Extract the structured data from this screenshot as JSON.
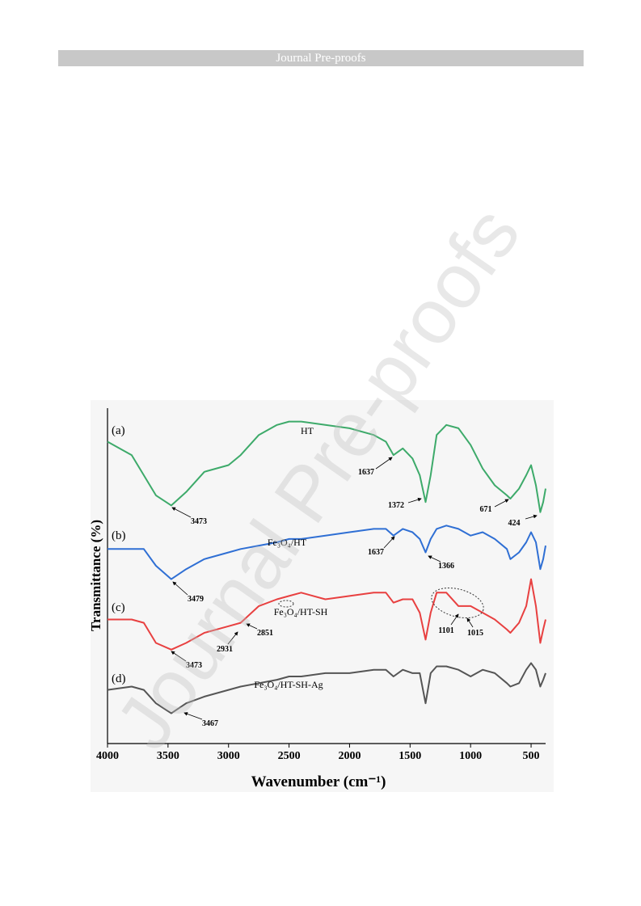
{
  "header": {
    "title": "Journal Pre-proofs"
  },
  "watermark": "Journal Pre-proofs",
  "chart_data": {
    "type": "line",
    "xlabel": "Wavenumber (cm⁻¹)",
    "ylabel": "Transmittance (%)",
    "xlim": [
      4000,
      380
    ],
    "xticks": [
      4000,
      3500,
      3000,
      2500,
      2000,
      1500,
      1000,
      500
    ],
    "ylim": [
      0,
      100
    ],
    "x": [
      4000,
      3800,
      3700,
      3600,
      3473,
      3350,
      3200,
      3000,
      2900,
      2750,
      2600,
      2500,
      2400,
      2200,
      2000,
      1800,
      1700,
      1637,
      1560,
      1480,
      1420,
      1372,
      1330,
      1280,
      1200,
      1100,
      1000,
      900,
      800,
      700,
      671,
      600,
      540,
      500,
      460,
      424,
      400,
      380
    ],
    "series": [
      {
        "name": "HT",
        "label": "(a)",
        "color": "#3daa6a",
        "values": [
          90,
          86,
          80,
          74,
          71,
          75,
          81,
          83,
          86,
          92,
          95,
          96,
          96,
          95,
          94,
          92,
          90,
          86,
          88,
          85,
          80,
          72,
          80,
          92,
          95,
          94,
          89,
          82,
          77,
          74,
          73,
          76,
          80,
          83,
          77,
          69,
          72,
          76
        ]
      },
      {
        "name": "Fe₃O₄/HT",
        "label": "(b)",
        "color": "#2f6fd4",
        "values": [
          58,
          58,
          58,
          53,
          49,
          52,
          55,
          57,
          58,
          59,
          60,
          61,
          61,
          62,
          63,
          64,
          64,
          62,
          64,
          63,
          61,
          57,
          61,
          64,
          65,
          64,
          62,
          63,
          61,
          58,
          55,
          57,
          60,
          63,
          60,
          52,
          55,
          59
        ]
      },
      {
        "name": "Fe₃O₄/HT-SH",
        "label": "(c)",
        "color": "#e84040",
        "values": [
          37,
          37,
          36,
          30,
          28,
          30,
          33,
          35,
          36,
          41,
          43,
          44,
          45,
          43,
          44,
          45,
          45,
          42,
          43,
          43,
          39,
          31,
          39,
          45,
          45,
          41,
          41,
          39,
          37,
          34,
          33,
          36,
          41,
          49,
          41,
          30,
          34,
          37
        ]
      },
      {
        "name": "Fe₃O₄/HT-SH-Ag",
        "label": "(d)",
        "color": "#555555",
        "values": [
          16,
          17,
          16,
          12,
          9,
          12,
          14,
          16,
          17,
          18,
          19,
          20,
          20,
          21,
          21,
          22,
          22,
          20,
          22,
          21,
          21,
          12,
          21,
          23,
          23,
          22,
          20,
          22,
          21,
          18,
          17,
          18,
          22,
          24,
          22,
          17,
          19,
          21
        ]
      }
    ],
    "annotations": [
      "3473",
      "1637",
      "1372",
      "671",
      "424",
      "3479",
      "1637",
      "1366",
      "3473",
      "2931",
      "2851",
      "1101",
      "1015",
      "3467"
    ]
  }
}
